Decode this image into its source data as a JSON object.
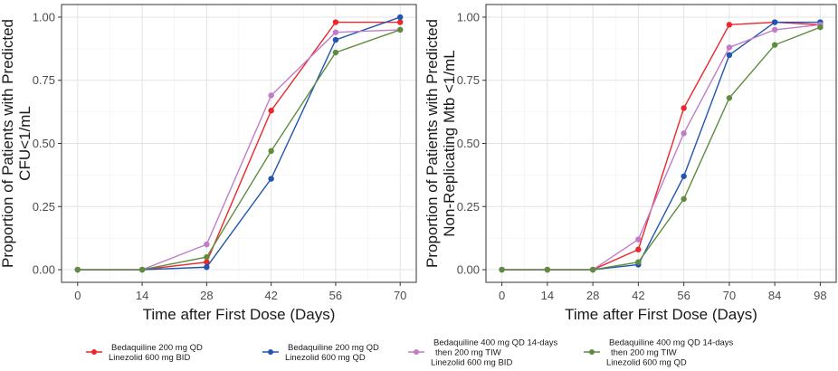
{
  "chart_data": [
    {
      "type": "line",
      "x_label": "Time after First Dose (Days)",
      "y_label": [
        "Proportion of Patients with Predicted",
        "CFU<1/mL"
      ],
      "x": [
        0,
        14,
        28,
        42,
        56,
        70
      ],
      "xlim": [
        -3.5,
        73.5
      ],
      "xticks": [
        0,
        14,
        28,
        42,
        56,
        70
      ],
      "ylim": [
        -0.05,
        1.05
      ],
      "yticks": [
        {
          "value": 0,
          "label": "0.00"
        },
        {
          "value": 0.25,
          "label": "0.25"
        },
        {
          "value": 0.5,
          "label": "0.50"
        },
        {
          "value": 0.75,
          "label": "0.75"
        },
        {
          "value": 1,
          "label": "1.00"
        }
      ],
      "grid": true,
      "series": [
        {
          "values": [
            0,
            0,
            0.03,
            0.63,
            0.98,
            0.98
          ]
        },
        {
          "values": [
            0,
            0,
            0.01,
            0.36,
            0.91,
            1.0
          ]
        },
        {
          "values": [
            0,
            0,
            0.1,
            0.69,
            0.94,
            0.95
          ]
        },
        {
          "values": [
            0,
            0,
            0.05,
            0.47,
            0.86,
            0.95
          ]
        }
      ]
    },
    {
      "type": "line",
      "x_label": "Time after First Dose (Days)",
      "y_label": [
        "Proportion of Patients with Predicted",
        "Non-Replicating Mtb <1/mL"
      ],
      "x": [
        0,
        14,
        28,
        42,
        56,
        70,
        84,
        98
      ],
      "xlim": [
        -4.9,
        102.9
      ],
      "xticks": [
        0,
        14,
        28,
        42,
        56,
        70,
        84,
        98
      ],
      "ylim": [
        -0.05,
        1.05
      ],
      "yticks": [
        {
          "value": 0,
          "label": "0.00"
        },
        {
          "value": 0.25,
          "label": "0.25"
        },
        {
          "value": 0.5,
          "label": "0.50"
        },
        {
          "value": 0.75,
          "label": "0.75"
        },
        {
          "value": 1,
          "label": "1.00"
        }
      ],
      "grid": true,
      "series": [
        {
          "values": [
            0,
            0,
            0,
            0.08,
            0.64,
            0.97,
            0.98,
            0.97
          ]
        },
        {
          "values": [
            0,
            0,
            0,
            0.02,
            0.37,
            0.85,
            0.98,
            0.98
          ]
        },
        {
          "values": [
            0,
            0,
            0,
            0.12,
            0.54,
            0.88,
            0.95,
            0.97
          ]
        },
        {
          "values": [
            0,
            0,
            0,
            0.03,
            0.28,
            0.68,
            0.89,
            0.96
          ]
        }
      ]
    }
  ],
  "legend": [
    {
      "name": [
        "Bedaquiline 200 mg QD",
        "Linezolid 600 mg BID"
      ],
      "color": "#e8282b"
    },
    {
      "name": [
        "Bedaquiline 200 mg QD",
        "Linezolid 600 mg QD"
      ],
      "color": "#2255b0"
    },
    {
      "name": [
        "Bedaquiline 400 mg QD 14-days",
        "then 200 mg TIW",
        "Linezolid 600 mg BID"
      ],
      "color": "#c17cc8"
    },
    {
      "name": [
        "Bedaquiline 400 mg QD 14-days",
        "then 200 mg TIW",
        "Linezolid 600 mg QD"
      ],
      "color": "#5e8c3f"
    }
  ]
}
